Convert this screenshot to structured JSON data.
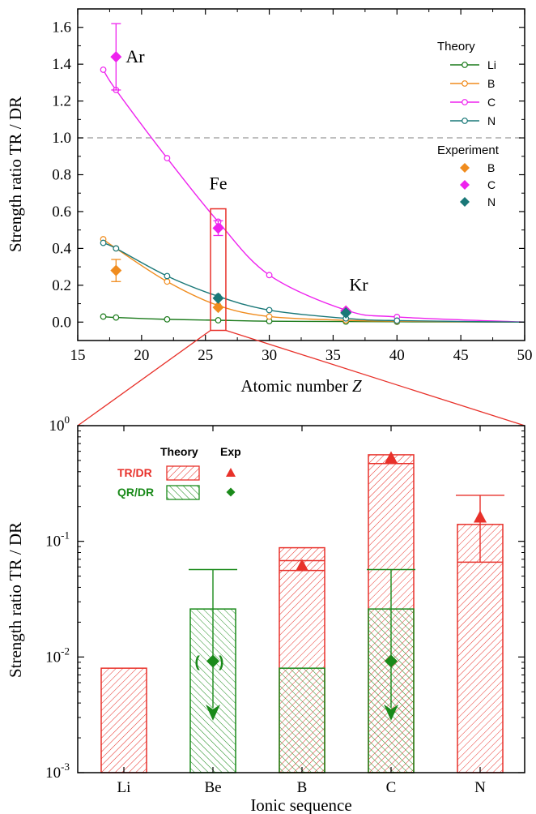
{
  "chart_data": [
    {
      "type": "scatter",
      "xlabel": "Atomic number ",
      "xlabel_var": "Z",
      "ylabel": "Strength ratio TR / DR",
      "xlim": [
        15,
        50
      ],
      "ylim": [
        -0.1,
        1.7
      ],
      "xticks": [
        15,
        20,
        25,
        30,
        35,
        40,
        45,
        50
      ],
      "yticks": [
        0.0,
        0.2,
        0.4,
        0.6,
        0.8,
        1.0,
        1.2,
        1.4,
        1.6
      ],
      "ytick_labels": [
        "0.0",
        "0.2",
        "0.4",
        "0.6",
        "0.8",
        "1.0",
        "1.2",
        "1.4",
        "1.6"
      ],
      "reference_line": 1.0,
      "legend_theory_title": "Theory",
      "legend_exp_title": "Experiment",
      "legend_position": "top-right",
      "theory": [
        {
          "name": "Li",
          "color": "#1a7a1a",
          "x": [
            17,
            18,
            22,
            26,
            30,
            36,
            40
          ],
          "y": [
            0.03,
            0.025,
            0.015,
            0.01,
            0.005,
            0.003,
            0.002
          ]
        },
        {
          "name": "B",
          "color": "#f08c1e",
          "x": [
            17,
            18,
            22,
            26,
            30,
            36,
            40
          ],
          "y": [
            0.45,
            0.4,
            0.22,
            0.09,
            0.03,
            0.01,
            0.005
          ]
        },
        {
          "name": "C",
          "color": "#ee22ee",
          "x": [
            17,
            18,
            22,
            26,
            30,
            36,
            40
          ],
          "y": [
            1.37,
            1.26,
            0.89,
            0.545,
            0.255,
            0.065,
            0.028
          ]
        },
        {
          "name": "N",
          "color": "#1a7878",
          "x": [
            17,
            18,
            22,
            26,
            30,
            36,
            40
          ],
          "y": [
            0.43,
            0.4,
            0.25,
            0.14,
            0.065,
            0.02,
            0.008
          ]
        }
      ],
      "experiment": [
        {
          "name": "B",
          "color": "#f08c1e",
          "points": [
            {
              "x": 18,
              "y": 0.28,
              "lo": 0.22,
              "hi": 0.34
            },
            {
              "x": 26,
              "y": 0.08,
              "lo": 0.08,
              "hi": 0.08
            },
            {
              "x": 36,
              "y": 0.06,
              "lo": 0.06,
              "hi": 0.06
            }
          ]
        },
        {
          "name": "C",
          "color": "#ee22ee",
          "points": [
            {
              "x": 18,
              "y": 1.44,
              "lo": 1.26,
              "hi": 1.62
            },
            {
              "x": 26,
              "y": 0.51,
              "lo": 0.47,
              "hi": 0.55
            },
            {
              "x": 36,
              "y": 0.06,
              "lo": 0.06,
              "hi": 0.06
            }
          ]
        },
        {
          "name": "N",
          "color": "#1a7878",
          "points": [
            {
              "x": 26,
              "y": 0.13,
              "lo": 0.13,
              "hi": 0.13
            },
            {
              "x": 36,
              "y": 0.05,
              "lo": 0.05,
              "hi": 0.05
            }
          ]
        }
      ],
      "annotations": [
        {
          "text": "Ar",
          "x": 19.5,
          "y": 1.41
        },
        {
          "text": "Fe",
          "x": 26,
          "y": 0.72
        },
        {
          "text": "Kr",
          "x": 37,
          "y": 0.17
        }
      ],
      "highlight_box": {
        "x0": 25.4,
        "x1": 26.6,
        "y0": -0.045,
        "y1": 0.615
      }
    },
    {
      "type": "bar",
      "xlabel": "Ionic sequence",
      "ylabel": "Strength ratio TR / DR",
      "yscale": "log",
      "ylim": [
        0.001,
        1
      ],
      "yticks": [
        {
          "base": "10",
          "exp": "-3",
          "value": 0.001
        },
        {
          "base": "10",
          "exp": "-2",
          "value": 0.01
        },
        {
          "base": "10",
          "exp": "-1",
          "value": 0.1
        },
        {
          "base": "10",
          "exp": "0",
          "value": 1
        }
      ],
      "categories": [
        "Li",
        "Be",
        "B",
        "C",
        "N"
      ],
      "legend": {
        "theory_title": "Theory",
        "exp_title": "Exp",
        "tr_label": "TR/DR",
        "qr_label": "QR/DR"
      },
      "series": [
        {
          "name": "TR/DR",
          "color": "#e8312a",
          "theory": [
            {
              "cat": "Li",
              "value": 0.008,
              "bands": []
            },
            {
              "cat": "B",
              "value": 0.088,
              "bands": [
                0.056,
                0.068
              ]
            },
            {
              "cat": "C",
              "value": 0.56,
              "bands": [
                0.47
              ]
            },
            {
              "cat": "N",
              "value": 0.14,
              "bands": [
                0.066
              ]
            }
          ],
          "exp": [
            {
              "cat": "B",
              "value": 0.061,
              "hi": 0.061,
              "lo": 0.061
            },
            {
              "cat": "C",
              "value": 0.52,
              "hi": 0.52,
              "lo": 0.52
            },
            {
              "cat": "N",
              "value": 0.16,
              "hi": 0.25,
              "lo": 0.066
            }
          ]
        },
        {
          "name": "QR/DR",
          "color": "#1a8a1a",
          "theory": [
            {
              "cat": "Be",
              "value": 0.026
            },
            {
              "cat": "B",
              "value": 0.008
            },
            {
              "cat": "C",
              "value": 0.026
            }
          ],
          "exp": [
            {
              "cat": "Be",
              "value": 0.0092,
              "hi": 0.057,
              "arrow_to": 0.0031,
              "label": "( )"
            },
            {
              "cat": "C",
              "value": 0.0092,
              "hi": 0.057,
              "arrow_to": 0.0031
            }
          ]
        }
      ]
    }
  ]
}
